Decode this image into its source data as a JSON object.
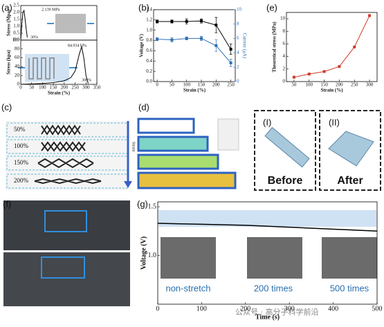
{
  "panel_labels": [
    "(a)",
    "(b)",
    "(c)",
    "(d)",
    "(e)",
    "(f)",
    "(g)"
  ],
  "chart_data": [
    {
      "type": "line",
      "ylabel": "Stress (Mpa)",
      "x": [
        0,
        5,
        10,
        15,
        20,
        25,
        30
      ],
      "series": [
        {
          "color": "#000000",
          "values": [
            0,
            1.2,
            2.0,
            2.139,
            1.5,
            0.8,
            0.2
          ]
        }
      ],
      "xlim": [
        0,
        350
      ],
      "ylim": [
        0,
        2.5
      ],
      "yticks": [
        {
          "value": 0,
          "label": "0.0"
        },
        {
          "value": 0.5,
          "label": "0.5"
        },
        {
          "value": 1,
          "label": "1.0"
        },
        {
          "value": 1.5,
          "label": "1.5"
        },
        {
          "value": 2,
          "label": "2.0"
        },
        {
          "value": 2.5,
          "label": "2.5"
        }
      ],
      "annotations": [
        "2.139 MPa",
        "30%"
      ]
    },
    {
      "type": "line",
      "ylabel": "Stress (kpa)",
      "xlabel": "Strain (%)",
      "x": [
        0,
        50,
        100,
        150,
        200,
        230,
        250,
        260,
        270,
        280,
        290,
        300,
        310
      ],
      "series": [
        {
          "color": "#000000",
          "values": [
            0,
            1,
            2,
            4,
            8,
            15,
            30,
            50,
            70,
            84.934,
            60,
            20,
            2
          ]
        }
      ],
      "xlim": [
        0,
        350
      ],
      "xticks": [
        0,
        50,
        100,
        150,
        200,
        250,
        300,
        350
      ],
      "ylim": [
        0,
        100
      ],
      "yticks": [
        0,
        20,
        40,
        60,
        80,
        100
      ],
      "annotations": [
        "84.934 kPa",
        "300%"
      ]
    },
    {
      "type": "line",
      "xlabel": "Strain (%)",
      "ylabel": "Voltage (V)",
      "y2label": "Current (μA)",
      "x": [
        0,
        50,
        100,
        150,
        200,
        250
      ],
      "markers": true,
      "series": [
        {
          "color": "#000000",
          "values": [
            1.17,
            1.17,
            1.17,
            1.18,
            1.1,
            0.63
          ],
          "errors": [
            0.03,
            0.03,
            0.05,
            0.04,
            0.15,
            0.1
          ]
        },
        {
          "color": "#2f6fb5",
          "axis": "y2",
          "values": [
            5.9,
            5.8,
            6.0,
            6.0,
            5.0,
            2.6
          ],
          "errors": [
            0.2,
            0.3,
            0.2,
            0.3,
            0.8,
            0.5
          ]
        }
      ],
      "xlim": [
        -12,
        265
      ],
      "xticks": [
        0,
        50,
        100,
        150,
        200,
        250
      ],
      "ylim": [
        0,
        1.4
      ],
      "yticks": [
        {
          "value": 0,
          "label": "0.0"
        },
        {
          "value": 0.2,
          "label": "0.2"
        },
        {
          "value": 0.4,
          "label": "0.4"
        },
        {
          "value": 0.6,
          "label": "0.6"
        },
        {
          "value": 0.8,
          "label": "0.8"
        },
        {
          "value": 1,
          "label": "1.0"
        },
        {
          "value": 1.2,
          "label": "1.2"
        },
        {
          "value": 1.4,
          "label": "1.4"
        }
      ],
      "y2lim": [
        0,
        10
      ],
      "y2ticks": [
        0,
        2,
        4,
        6,
        8,
        10
      ],
      "annotations": []
    },
    {
      "type": "line",
      "xlabel": "Strain (%)",
      "ylabel": "Theoretical stress (MPa)",
      "x": [
        50,
        100,
        150,
        200,
        250,
        300
      ],
      "markers": true,
      "series": [
        {
          "color": "#d03a2a",
          "values": [
            0.7,
            1.2,
            1.6,
            2.4,
            5.5,
            10.5
          ]
        }
      ],
      "xlim": [
        25,
        325
      ],
      "xticks": [
        50,
        100,
        150,
        200,
        250,
        300
      ],
      "ylim": [
        0,
        11
      ],
      "yticks": [
        0,
        2,
        4,
        6,
        8,
        10
      ],
      "annotations": []
    },
    {
      "type": "line",
      "xlabel": "Time (s)",
      "ylabel": "Voltage (V)",
      "x": [
        0,
        100,
        200,
        300,
        400,
        500
      ],
      "series": [
        {
          "color": "#000000",
          "values": [
            1.33,
            1.32,
            1.31,
            1.29,
            1.27,
            1.25
          ]
        }
      ],
      "xlim": [
        0,
        500
      ],
      "xticks": [
        0,
        100,
        200,
        300,
        400,
        500
      ],
      "ylim": [
        0.5,
        1.55
      ],
      "yticks": [
        {
          "value": 1,
          "label": "1.0"
        },
        {
          "value": 1.5,
          "label": "1.5"
        }
      ],
      "annotations": [
        "non-stretch",
        "200 times",
        "500 times"
      ]
    }
  ],
  "panel_c": {
    "strains": [
      "50%",
      "100%",
      "150%",
      "200%"
    ]
  },
  "panel_d": {
    "arrow_label": "Strain"
  },
  "panel_states": [
    {
      "tag": "(I)",
      "label": "Before"
    },
    {
      "tag": "(II)",
      "label": "After"
    }
  ],
  "watermark": "公众号 · 高分子科学前沿"
}
